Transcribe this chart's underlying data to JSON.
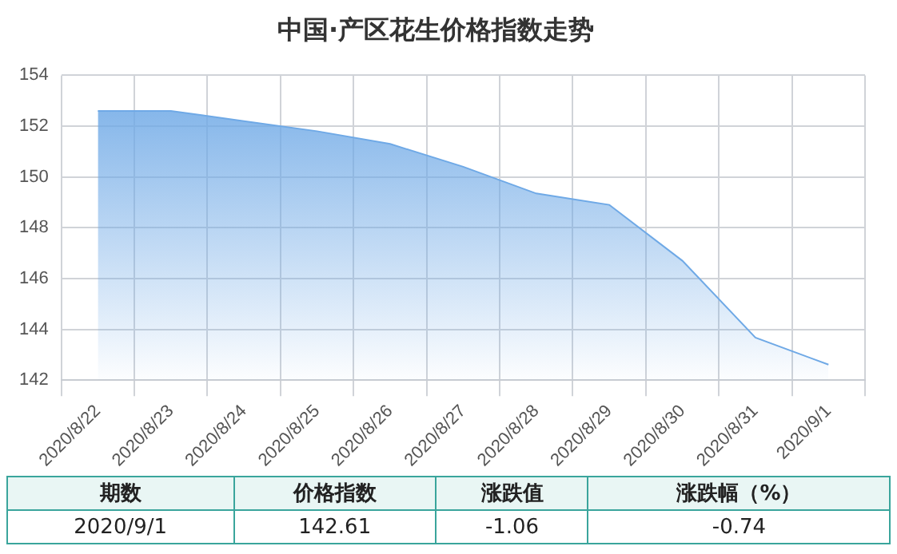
{
  "chart_data": {
    "type": "area",
    "title": "中国·产区花生价格指数走势",
    "categories": [
      "2020/8/22",
      "2020/8/23",
      "2020/8/24",
      "2020/8/25",
      "2020/8/26",
      "2020/8/27",
      "2020/8/28",
      "2020/8/29",
      "2020/8/30",
      "2020/8/31",
      "2020/9/1"
    ],
    "series": [
      {
        "color": "#6fa9e6",
        "values": [
          152.6,
          152.6,
          152.2,
          151.8,
          151.3,
          150.4,
          149.35,
          148.9,
          146.7,
          143.67,
          142.61
        ]
      }
    ],
    "ylim": [
      142,
      154
    ],
    "yticks": [
      142,
      144,
      146,
      148,
      150,
      152,
      154
    ],
    "grid": true,
    "legend": false,
    "annotations": [
      "期数",
      "价格指数",
      "涨跌值",
      "涨跌幅（%）",
      "2020/9/1",
      "142.61",
      "-1.06",
      "-0.74"
    ]
  }
}
